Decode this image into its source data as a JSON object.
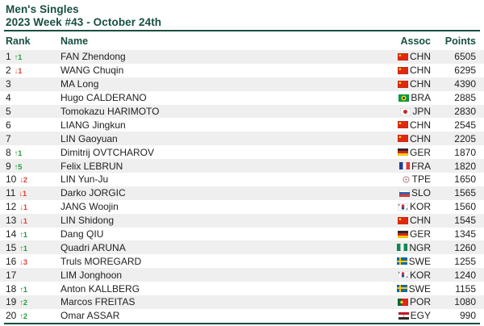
{
  "header": {
    "title_line1": "Men's Singles",
    "title_line2": "2023 Week #43 - October 24th"
  },
  "icons": {
    "up_arrow": "↑",
    "down_arrow": "↓"
  },
  "colors": {
    "accent_green": "#174f42",
    "row_alt": "#efefef",
    "up_green": "#279f43",
    "down_red": "#e04438",
    "text": "#212121"
  },
  "table": {
    "columns": {
      "rank": "Rank",
      "name": "Name",
      "assoc": "Assoc",
      "points": "Points"
    },
    "rows": [
      {
        "rank": 1,
        "change_dir": "up",
        "change_value": 1,
        "name": "FAN Zhendong",
        "assoc": "CHN",
        "points": 6505
      },
      {
        "rank": 2,
        "change_dir": "down",
        "change_value": 1,
        "name": "WANG Chuqin",
        "assoc": "CHN",
        "points": 6295
      },
      {
        "rank": 3,
        "change_dir": "",
        "change_value": "",
        "name": "MA Long",
        "assoc": "CHN",
        "points": 4390
      },
      {
        "rank": 4,
        "change_dir": "",
        "change_value": "",
        "name": "Hugo CALDERANO",
        "assoc": "BRA",
        "points": 2885
      },
      {
        "rank": 5,
        "change_dir": "",
        "change_value": "",
        "name": "Tomokazu HARIMOTO",
        "assoc": "JPN",
        "points": 2830
      },
      {
        "rank": 6,
        "change_dir": "",
        "change_value": "",
        "name": "LIANG Jingkun",
        "assoc": "CHN",
        "points": 2545
      },
      {
        "rank": 7,
        "change_dir": "",
        "change_value": "",
        "name": "LIN Gaoyuan",
        "assoc": "CHN",
        "points": 2205
      },
      {
        "rank": 8,
        "change_dir": "up",
        "change_value": 1,
        "name": "Dimitrij OVTCHAROV",
        "assoc": "GER",
        "points": 1870
      },
      {
        "rank": 9,
        "change_dir": "up",
        "change_value": 5,
        "name": "Felix LEBRUN",
        "assoc": "FRA",
        "points": 1820
      },
      {
        "rank": 10,
        "change_dir": "down",
        "change_value": 2,
        "name": "LIN Yun-Ju",
        "assoc": "TPE",
        "points": 1650
      },
      {
        "rank": 11,
        "change_dir": "down",
        "change_value": 1,
        "name": "Darko JORGIC",
        "assoc": "SLO",
        "points": 1565
      },
      {
        "rank": 12,
        "change_dir": "down",
        "change_value": 1,
        "name": "JANG Woojin",
        "assoc": "KOR",
        "points": 1560
      },
      {
        "rank": 13,
        "change_dir": "down",
        "change_value": 1,
        "name": "LIN Shidong",
        "assoc": "CHN",
        "points": 1545
      },
      {
        "rank": 14,
        "change_dir": "up",
        "change_value": 1,
        "name": "Dang QIU",
        "assoc": "GER",
        "points": 1345
      },
      {
        "rank": 15,
        "change_dir": "up",
        "change_value": 1,
        "name": "Quadri ARUNA",
        "assoc": "NGR",
        "points": 1260
      },
      {
        "rank": 16,
        "change_dir": "down",
        "change_value": 3,
        "name": "Truls MOREGARD",
        "assoc": "SWE",
        "points": 1255
      },
      {
        "rank": 17,
        "change_dir": "",
        "change_value": "",
        "name": "LIM Jonghoon",
        "assoc": "KOR",
        "points": 1240
      },
      {
        "rank": 18,
        "change_dir": "up",
        "change_value": 1,
        "name": "Anton KALLBERG",
        "assoc": "SWE",
        "points": 1155
      },
      {
        "rank": 19,
        "change_dir": "up",
        "change_value": 2,
        "name": "Marcos FREITAS",
        "assoc": "POR",
        "points": 1080
      },
      {
        "rank": 20,
        "change_dir": "up",
        "change_value": 2,
        "name": "Omar ASSAR",
        "assoc": "EGY",
        "points": 990
      }
    ]
  }
}
